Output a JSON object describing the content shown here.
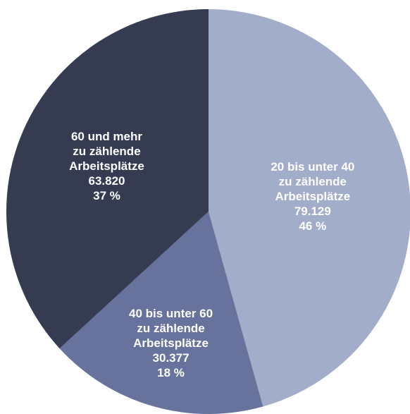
{
  "chart_data": {
    "type": "pie",
    "categories": [
      [
        "20 bis unter 40",
        "zu zählende",
        "Arbeitsplätze"
      ],
      [
        "40 bis unter 60",
        "zu zählende",
        "Arbeitsplätze"
      ],
      [
        "60 und mehr",
        "zu zählende",
        "Arbeitsplätze"
      ]
    ],
    "values": [
      79129,
      30377,
      63820
    ],
    "value_labels": [
      "79.129",
      "30.377",
      "63.820"
    ],
    "percentages": [
      46,
      18,
      37
    ],
    "percentage_labels": [
      "46 %",
      "18 %",
      "37 %"
    ],
    "colors": [
      "#a2adca",
      "#67739c",
      "#353c52"
    ],
    "start_angle": 0,
    "direction": "clockwise"
  }
}
